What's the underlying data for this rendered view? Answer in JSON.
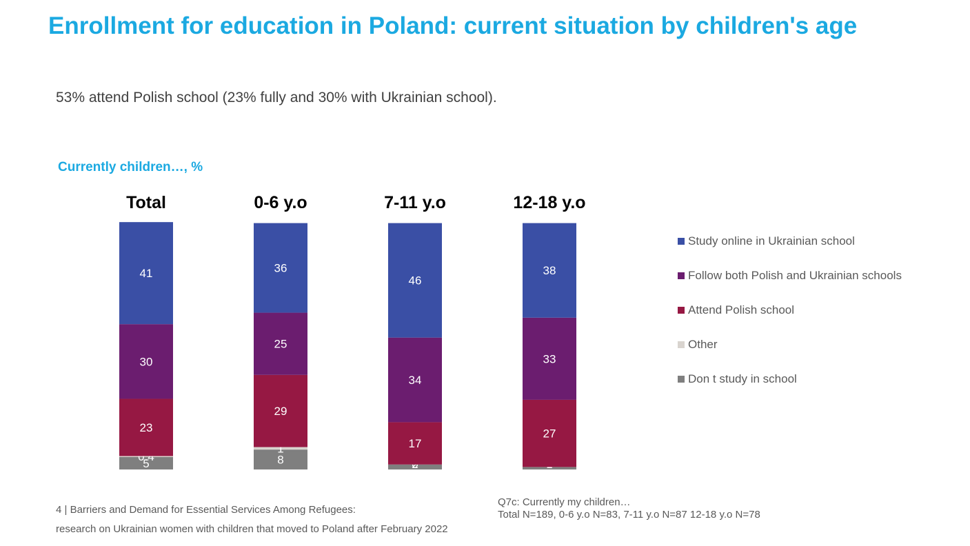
{
  "title": "Enrollment for education in Poland: current situation by children's age",
  "subtitle": "53% attend Polish school (23% fully and 30% with Ukrainian school).",
  "chart_caption": "Currently children…, %",
  "colors": {
    "title": "#1ba9e1",
    "study_online": "#3a4fa5",
    "follow_both": "#6b1d6f",
    "attend_polish": "#961843",
    "other": "#d9d4cf",
    "dont_study": "#7f7f7f"
  },
  "chart_data": {
    "type": "bar",
    "stacked": true,
    "categories": [
      "Total",
      "0-6 y.o",
      "7-11 y.o",
      "12-18 y.o"
    ],
    "series": [
      {
        "name": "Don t study in school",
        "values": [
          5,
          8,
          2,
          1
        ]
      },
      {
        "name": "Other",
        "values": [
          0.4,
          1,
          0,
          0
        ]
      },
      {
        "name": "Attend Polish school",
        "values": [
          23,
          29,
          17,
          27
        ]
      },
      {
        "name": "Follow both Polish and Ukrainian schools",
        "values": [
          30,
          25,
          34,
          33
        ]
      },
      {
        "name": "Study online in Ukrainian school",
        "values": [
          41,
          36,
          46,
          38
        ]
      }
    ],
    "ylim": [
      0,
      100
    ],
    "grid": false,
    "legend_position": "right"
  },
  "legend": [
    {
      "label": "Study online in Ukrainian school",
      "color": "#3a4fa5"
    },
    {
      "label": "Follow both Polish and Ukrainian schools",
      "color": "#6b1d6f"
    },
    {
      "label": "Attend Polish school",
      "color": "#961843"
    },
    {
      "label": "Other",
      "color": "#d9d4cf"
    },
    {
      "label": "Don t study in school",
      "color": "#7f7f7f"
    }
  ],
  "footer": {
    "page_line": "4 |  Barriers and Demand for Essential Services Among Refugees:",
    "source_line": "research on Ukrainian women with children that moved to Poland after February 2022",
    "question": "Q7c: Currently my children…",
    "sample": "Total N=189, 0-6 y.o N=83, 7-11 y.o N=87 12-18 y.o N=78"
  }
}
